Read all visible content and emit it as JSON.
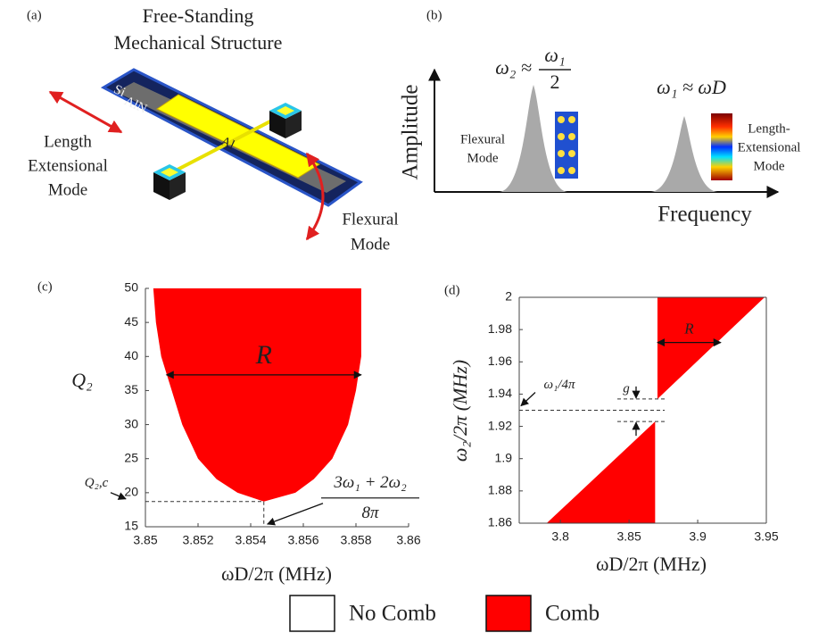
{
  "panel_a": {
    "label": "(a)",
    "title": [
      "Free-Standing",
      "Mechanical Structure"
    ],
    "layers": [
      "Si",
      "AlN",
      "Al"
    ],
    "modes": {
      "length": [
        "Length",
        "Extensional",
        "Mode"
      ],
      "flexural": [
        "Flexural",
        "Mode"
      ]
    }
  },
  "panel_b": {
    "label": "(b)",
    "y_label": "Amplitude",
    "x_label": "Frequency",
    "peak2": {
      "lhs": "ω₂ ≈",
      "num": "ω₁",
      "den": "2",
      "mode": [
        "Flexural",
        "Mode"
      ]
    },
    "peak1": {
      "formula": "ω₁ ≈ ωD",
      "mode": [
        "Length-",
        "Extensional",
        "Mode"
      ]
    }
  },
  "chart_data": [
    {
      "type": "area",
      "panel": "(c)",
      "xlabel": "ωD/2π (MHz)",
      "ylabel": "Q₂",
      "box": false,
      "xlim": [
        3.85,
        3.86
      ],
      "ylim": [
        15,
        50
      ],
      "xticks": [
        3.85,
        3.852,
        3.854,
        3.856,
        3.858,
        3.86
      ],
      "yticks": [
        15,
        20,
        25,
        30,
        35,
        40,
        45,
        50
      ],
      "series": [
        {
          "name": "Comb",
          "color": "#ff0000",
          "x": [
            3.8503,
            3.8504,
            3.8506,
            3.8508,
            3.851,
            3.8514,
            3.852,
            3.8527,
            3.8535,
            3.8545,
            3.8557,
            3.8564,
            3.8571,
            3.8577,
            3.858,
            3.8582,
            3.8582
          ],
          "y": [
            50,
            45,
            40,
            37.5,
            35,
            30,
            25,
            22,
            20,
            18.7,
            20,
            22,
            25,
            30,
            35,
            40,
            50
          ]
        }
      ],
      "annotations": {
        "R": {
          "text": "R",
          "y": 37.3,
          "x": [
            3.8508,
            3.8582
          ]
        },
        "threshold": {
          "text": "Q₂,c",
          "x": 3.8545,
          "y": 18.7,
          "formula_num": "3ω₁ + 2ω₂",
          "formula_den": "8π"
        }
      }
    },
    {
      "type": "area",
      "panel": "(d)",
      "xlabel": "ωD/2π (MHz)",
      "ylabel": "ω₂/2π (MHz)",
      "box": true,
      "xlim": [
        3.77,
        3.95
      ],
      "ylim": [
        1.86,
        2
      ],
      "xticks": [
        3.8,
        3.85,
        3.9,
        3.95
      ],
      "yticks": [
        1.86,
        1.88,
        1.9,
        1.92,
        1.94,
        1.96,
        1.98,
        2
      ],
      "series": [
        {
          "name": "Comb",
          "color": "#ff0000",
          "x": [
            3.79,
            3.869,
            3.869
          ],
          "y": [
            1.86,
            1.86,
            1.923
          ]
        },
        {
          "name": "Comb",
          "color": "#ff0000",
          "x": [
            3.8707,
            3.8707,
            3.9487
          ],
          "y": [
            1.937,
            2,
            2
          ]
        }
      ],
      "annotations": {
        "R": {
          "text": "R",
          "y": 1.972,
          "x": [
            3.8707,
            3.9168
          ]
        },
        "gap": {
          "text": "g",
          "upper": 1.937,
          "lower": 1.923
        },
        "ref": {
          "text": "ω₁/4π",
          "y": 1.93
        }
      }
    }
  ],
  "legend": {
    "items": [
      {
        "name": "No Comb",
        "color": "#ffffff"
      },
      {
        "name": "Comb",
        "color": "#ff0000"
      }
    ]
  }
}
